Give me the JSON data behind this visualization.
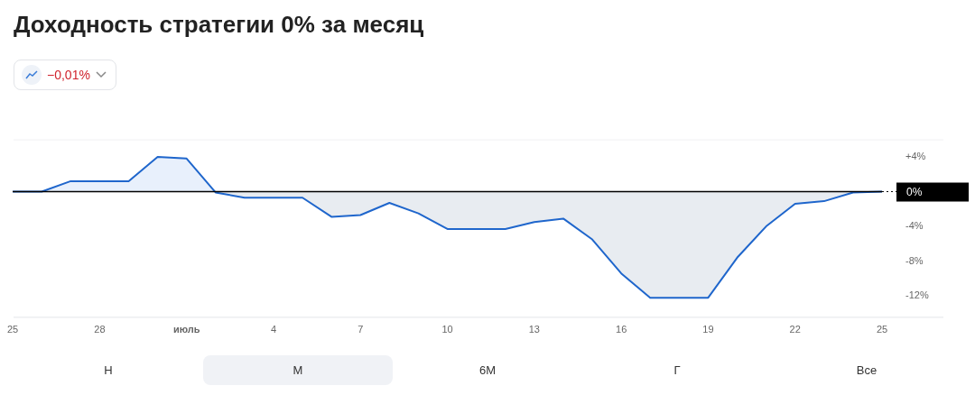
{
  "chart_data": {
    "type": "area",
    "title": "Доходность стратегии 0% за месяц",
    "categories": [
      "25",
      null,
      null,
      "28",
      null,
      null,
      "июль",
      null,
      null,
      "4",
      null,
      null,
      "7",
      null,
      null,
      "10",
      null,
      null,
      "13",
      null,
      null,
      "16",
      null,
      null,
      "19",
      null,
      null,
      "22",
      null,
      null,
      "25"
    ],
    "series": [
      {
        "color": "#1f66cc",
        "values": [
          0,
          0,
          1.2,
          1.2,
          1.2,
          4.0,
          3.8,
          -0.1,
          -0.7,
          -0.7,
          -0.7,
          -2.9,
          -2.7,
          -1.3,
          -2.5,
          -4.3,
          -4.3,
          -4.3,
          -3.5,
          -3.1,
          -5.5,
          -9.4,
          -12.2,
          -12.2,
          -12.2,
          -7.6,
          -4.0,
          -1.4,
          -1.1,
          -0.1,
          0
        ]
      }
    ],
    "ylim": [
      -14.4,
      6
    ],
    "yticks": [
      {
        "value": 4,
        "label": "+4%"
      },
      {
        "value": 0,
        "label": null
      },
      {
        "value": -4,
        "label": "-4%"
      },
      {
        "value": -8,
        "label": "-8%"
      },
      {
        "value": -12,
        "label": "-12%"
      }
    ],
    "ref_lines": [
      {
        "axis": "y",
        "value": 0,
        "label": "0%",
        "color": "#000000"
      }
    ],
    "annotations": [
      "−0,01%",
      "Н",
      "М",
      "6М",
      "Г",
      "Все"
    ],
    "grid": false,
    "legend": false,
    "marker": "none",
    "line_style": "solid"
  }
}
